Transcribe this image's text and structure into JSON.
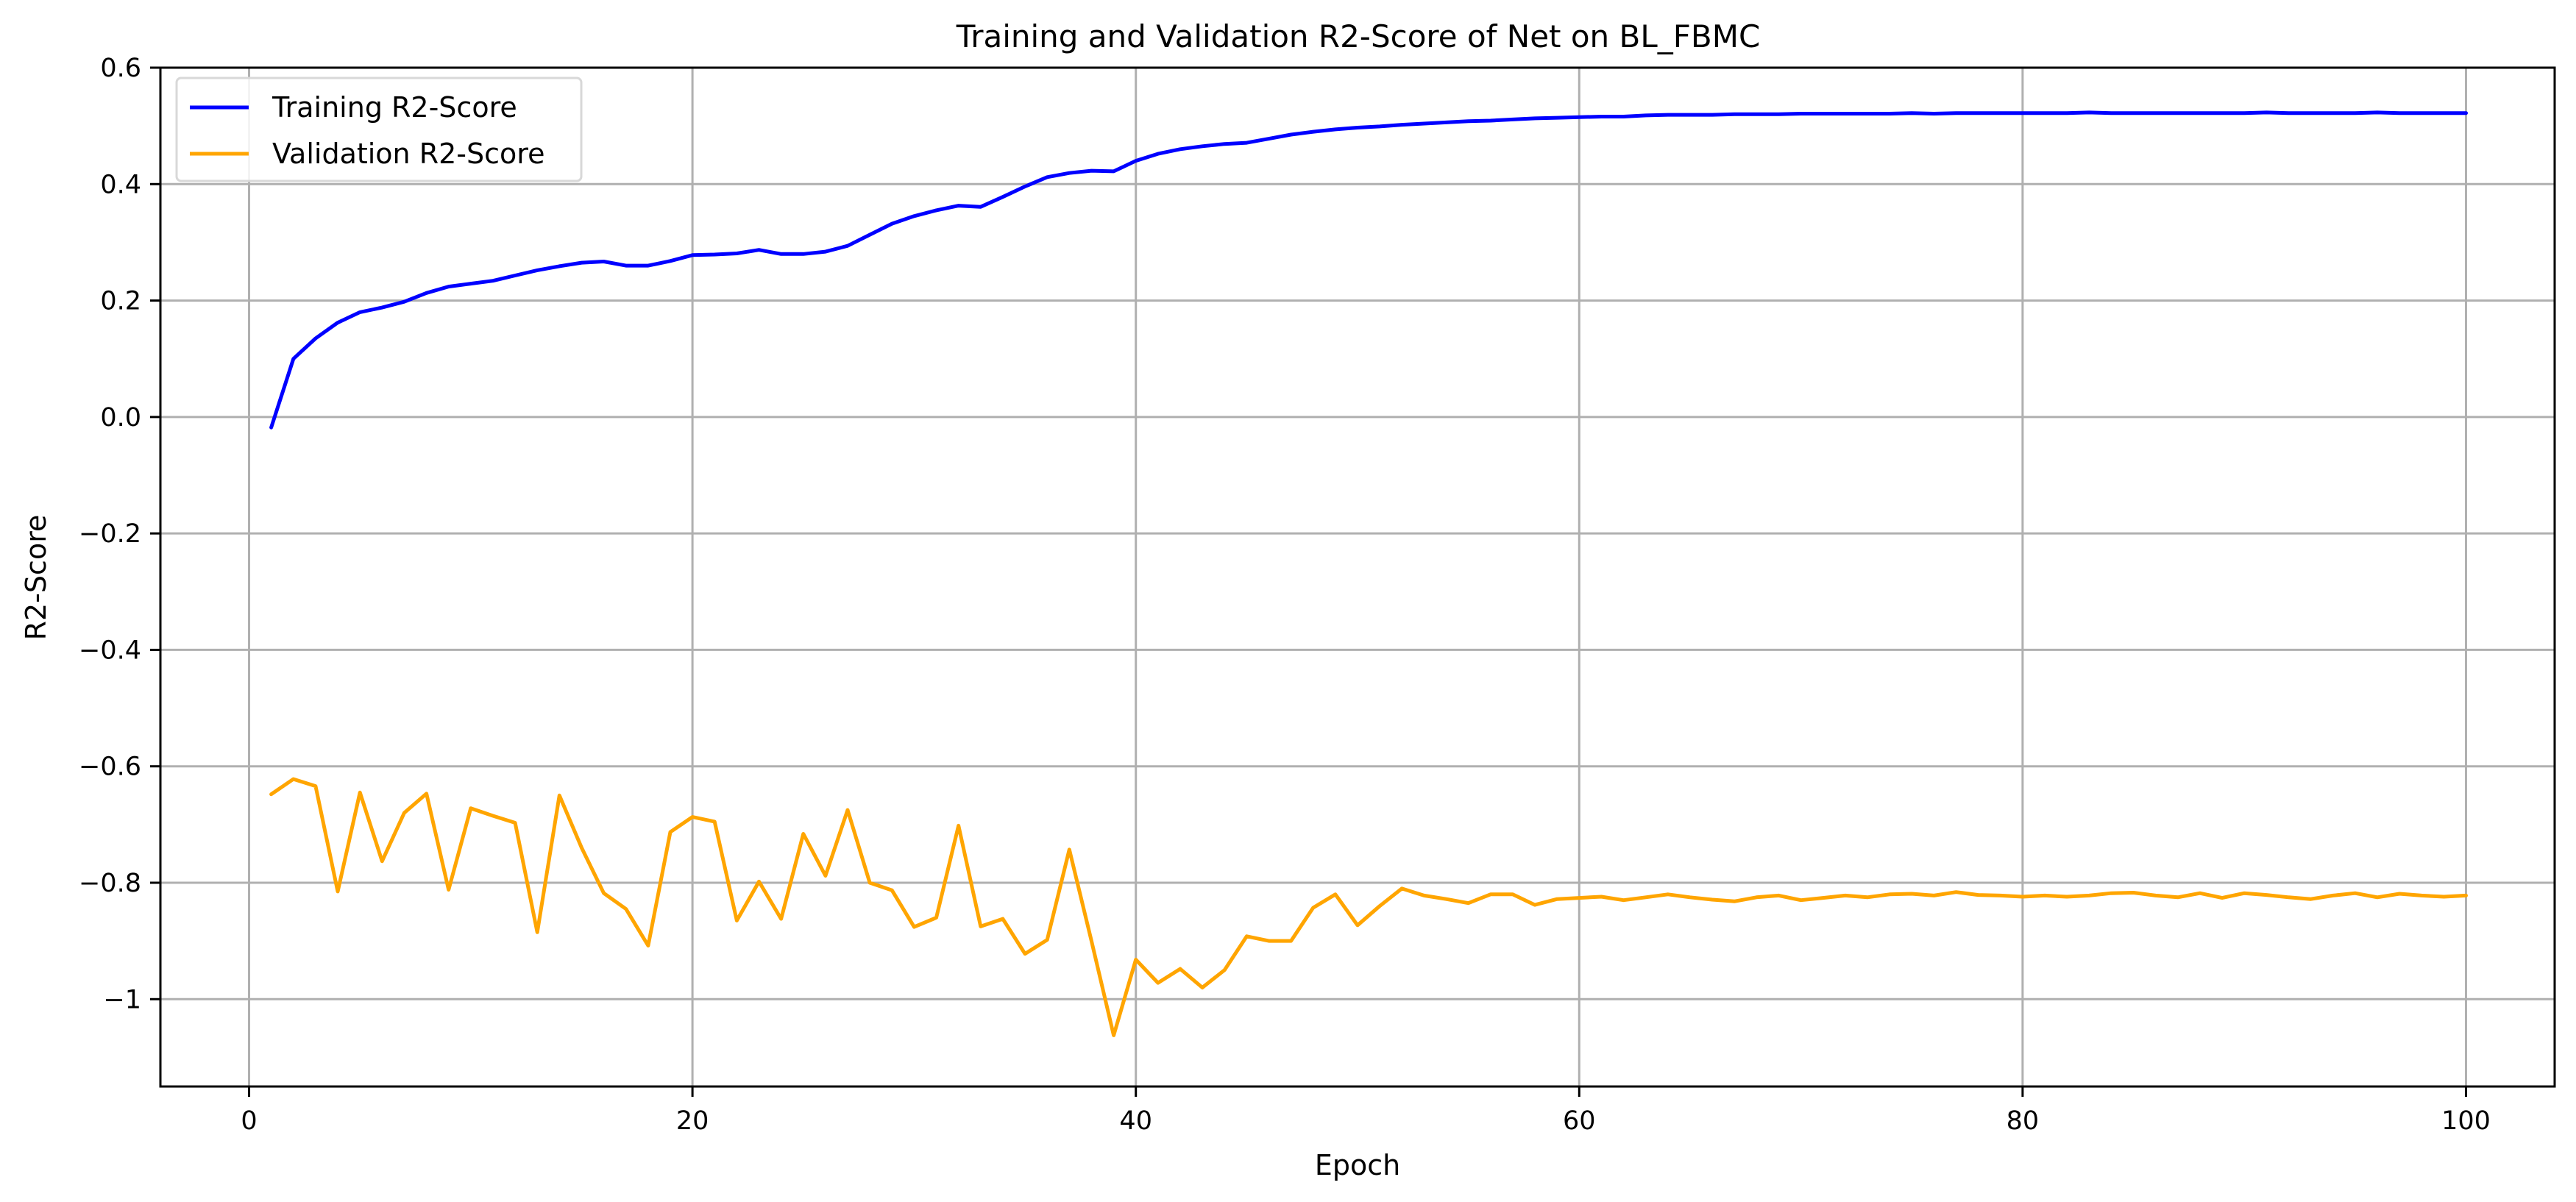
{
  "chart_data": {
    "type": "line",
    "title": "Training and Validation R2-Score of Net on BL_FBMC",
    "xlabel": "Epoch",
    "ylabel": "R2-Score",
    "xlim": [
      -4,
      104
    ],
    "ylim": [
      -1.15,
      0.6
    ],
    "xticks": [
      0,
      20,
      40,
      60,
      80,
      100
    ],
    "yticks": [
      -1.0,
      -0.8,
      -0.6,
      -0.4,
      -0.2,
      0.0,
      0.2,
      0.4,
      0.6
    ],
    "grid": true,
    "legend_position": "top-left",
    "series": [
      {
        "name": "Training R2-Score",
        "color": "#0000ff",
        "x": [
          1,
          2,
          3,
          4,
          5,
          6,
          7,
          8,
          9,
          10,
          11,
          12,
          13,
          14,
          15,
          16,
          17,
          18,
          19,
          20,
          21,
          22,
          23,
          24,
          25,
          26,
          27,
          28,
          29,
          30,
          31,
          32,
          33,
          34,
          35,
          36,
          37,
          38,
          39,
          40,
          41,
          42,
          43,
          44,
          45,
          46,
          47,
          48,
          49,
          50,
          51,
          52,
          53,
          54,
          55,
          56,
          57,
          58,
          59,
          60,
          61,
          62,
          63,
          64,
          65,
          66,
          67,
          68,
          69,
          70,
          71,
          72,
          73,
          74,
          75,
          76,
          77,
          78,
          79,
          80,
          81,
          82,
          83,
          84,
          85,
          86,
          87,
          88,
          89,
          90,
          91,
          92,
          93,
          94,
          95,
          96,
          97,
          98,
          99,
          100
        ],
        "values": [
          -0.018,
          0.1,
          0.135,
          0.162,
          0.18,
          0.188,
          0.198,
          0.213,
          0.224,
          0.229,
          0.234,
          0.243,
          0.252,
          0.259,
          0.265,
          0.267,
          0.26,
          0.26,
          0.268,
          0.278,
          0.279,
          0.281,
          0.287,
          0.28,
          0.28,
          0.284,
          0.294,
          0.313,
          0.332,
          0.345,
          0.355,
          0.363,
          0.361,
          0.378,
          0.396,
          0.412,
          0.419,
          0.423,
          0.422,
          0.44,
          0.452,
          0.46,
          0.465,
          0.469,
          0.471,
          0.478,
          0.485,
          0.49,
          0.494,
          0.497,
          0.499,
          0.502,
          0.504,
          0.506,
          0.508,
          0.509,
          0.511,
          0.513,
          0.514,
          0.515,
          0.516,
          0.516,
          0.518,
          0.519,
          0.519,
          0.519,
          0.52,
          0.52,
          0.52,
          0.521,
          0.521,
          0.521,
          0.521,
          0.521,
          0.522,
          0.521,
          0.522,
          0.522,
          0.522,
          0.522,
          0.522,
          0.522,
          0.523,
          0.522,
          0.522,
          0.522,
          0.522,
          0.522,
          0.522,
          0.522,
          0.523,
          0.522,
          0.522,
          0.522,
          0.522,
          0.523,
          0.522,
          0.522,
          0.522,
          0.522
        ]
      },
      {
        "name": "Validation R2-Score",
        "color": "#ffa500",
        "x": [
          1,
          2,
          3,
          4,
          5,
          6,
          7,
          8,
          9,
          10,
          11,
          12,
          13,
          14,
          15,
          16,
          17,
          18,
          19,
          20,
          21,
          22,
          23,
          24,
          25,
          26,
          27,
          28,
          29,
          30,
          31,
          32,
          33,
          34,
          35,
          36,
          37,
          38,
          39,
          40,
          41,
          42,
          43,
          44,
          45,
          46,
          47,
          48,
          49,
          50,
          51,
          52,
          53,
          54,
          55,
          56,
          57,
          58,
          59,
          60,
          61,
          62,
          63,
          64,
          65,
          66,
          67,
          68,
          69,
          70,
          71,
          72,
          73,
          74,
          75,
          76,
          77,
          78,
          79,
          80,
          81,
          82,
          83,
          84,
          85,
          86,
          87,
          88,
          89,
          90,
          91,
          92,
          93,
          94,
          95,
          96,
          97,
          98,
          99,
          100
        ],
        "values": [
          -0.648,
          -0.622,
          -0.634,
          -0.815,
          -0.645,
          -0.763,
          -0.68,
          -0.647,
          -0.812,
          -0.672,
          -0.685,
          -0.697,
          -0.885,
          -0.65,
          -0.74,
          -0.818,
          -0.845,
          -0.908,
          -0.713,
          -0.687,
          -0.695,
          -0.865,
          -0.798,
          -0.862,
          -0.716,
          -0.788,
          -0.675,
          -0.8,
          -0.813,
          -0.876,
          -0.86,
          -0.702,
          -0.875,
          -0.862,
          -0.922,
          -0.898,
          -0.743,
          -0.9,
          -1.062,
          -0.932,
          -0.972,
          -0.948,
          -0.98,
          -0.95,
          -0.892,
          -0.9,
          -0.9,
          -0.843,
          -0.82,
          -0.873,
          -0.84,
          -0.81,
          -0.822,
          -0.828,
          -0.835,
          -0.82,
          -0.82,
          -0.838,
          -0.828,
          -0.826,
          -0.824,
          -0.83,
          -0.825,
          -0.82,
          -0.825,
          -0.829,
          -0.832,
          -0.825,
          -0.822,
          -0.83,
          -0.826,
          -0.822,
          -0.825,
          -0.82,
          -0.819,
          -0.822,
          -0.816,
          -0.821,
          -0.822,
          -0.824,
          -0.822,
          -0.824,
          -0.822,
          -0.818,
          -0.817,
          -0.822,
          -0.825,
          -0.818,
          -0.826,
          -0.818,
          -0.821,
          -0.825,
          -0.828,
          -0.822,
          -0.818,
          -0.825,
          -0.819,
          -0.822,
          -0.824,
          -0.822
        ]
      }
    ]
  }
}
